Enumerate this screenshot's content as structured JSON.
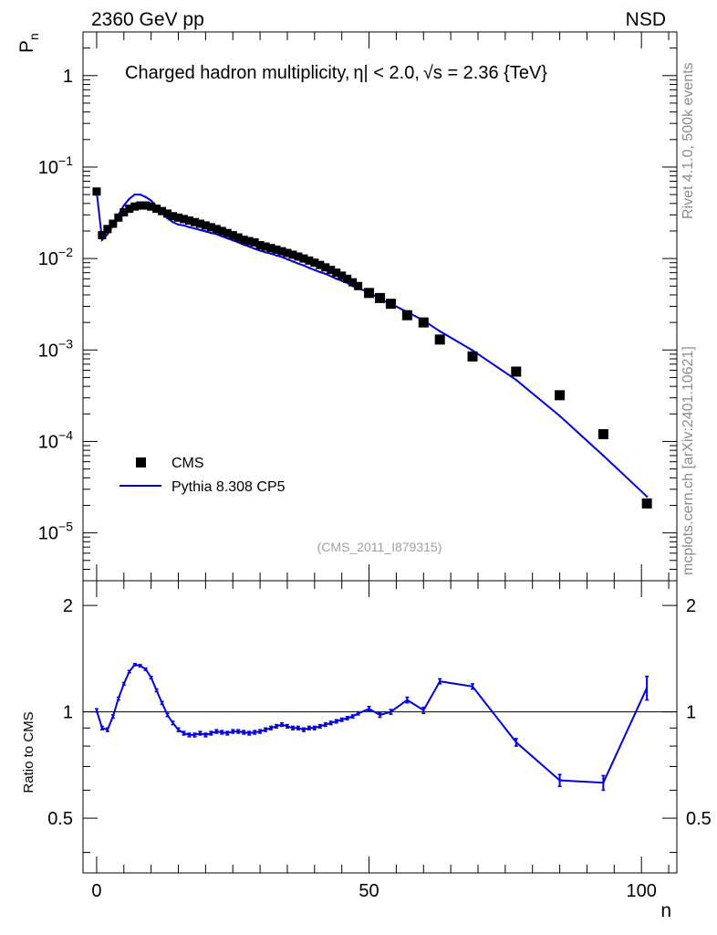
{
  "header": {
    "left": "2360 GeV pp",
    "right": "NSD"
  },
  "side_labels": {
    "top": "Rivet 4.1.0,  500k events",
    "bottom": "mcplots.cern.ch [arXiv:2401.10621]"
  },
  "chart_data": {
    "type": "scatter",
    "title_part1": "Charged hadron multiplicity,",
    "title_eta": "η",
    "title_part2": "| < 2.0,",
    "title_sqrt": "√",
    "title_part3": "s = 2.36 {TeV}",
    "ylabel": "P",
    "ylabel_sub": "n",
    "xlabel": "n",
    "analysis_id": "(CMS_2011_I879315)",
    "ylim": [
      3e-06,
      3
    ],
    "xlim": [
      -2.5,
      106.5
    ],
    "y_ticks": [
      {
        "value": 1,
        "base": "1",
        "exp": ""
      },
      {
        "value": 0.1,
        "base": "10",
        "exp": "−1"
      },
      {
        "value": 0.01,
        "base": "10",
        "exp": "−2"
      },
      {
        "value": 0.001,
        "base": "10",
        "exp": "−3"
      },
      {
        "value": 0.0001,
        "base": "10",
        "exp": "−4"
      },
      {
        "value": 1e-05,
        "base": "10",
        "exp": "−5"
      }
    ],
    "x_ticks": [
      {
        "value": 0,
        "label": "0"
      },
      {
        "value": 50,
        "label": "50"
      },
      {
        "value": 100,
        "label": "100"
      }
    ],
    "legend": [
      {
        "label": "CMS",
        "marker": "square",
        "color": "#000000"
      },
      {
        "label": "Pythia 8.308 CP5",
        "marker": "line",
        "color": "#0000dd"
      }
    ],
    "series": [
      {
        "name": "CMS",
        "x": [
          0,
          1,
          2,
          3,
          4,
          5,
          6,
          7,
          8,
          9,
          10,
          11,
          12,
          13,
          14,
          15,
          16,
          17,
          18,
          19,
          20,
          21,
          22,
          23,
          24,
          25,
          26,
          27,
          28,
          29,
          30,
          31,
          32,
          33,
          34,
          35,
          36,
          37,
          38,
          39,
          40,
          41,
          42,
          43,
          44,
          45,
          46,
          47,
          48,
          50,
          52,
          54,
          57,
          60,
          63,
          69,
          77,
          85,
          93,
          101
        ],
        "y": [
          0.054,
          0.018,
          0.021,
          0.024,
          0.028,
          0.032,
          0.035,
          0.037,
          0.038,
          0.038,
          0.037,
          0.035,
          0.033,
          0.031,
          0.029,
          0.028,
          0.027,
          0.026,
          0.025,
          0.024,
          0.023,
          0.022,
          0.021,
          0.02,
          0.019,
          0.018,
          0.017,
          0.016,
          0.0155,
          0.015,
          0.014,
          0.0135,
          0.013,
          0.0125,
          0.012,
          0.0115,
          0.011,
          0.0105,
          0.01,
          0.0095,
          0.009,
          0.0085,
          0.008,
          0.0075,
          0.007,
          0.0065,
          0.006,
          0.0055,
          0.005,
          0.0042,
          0.0037,
          0.0032,
          0.0024,
          0.002,
          0.0013,
          0.00085,
          0.00058,
          0.00032,
          0.00012,
          2.1e-05
        ]
      },
      {
        "name": "Pythia 8.308 CP5",
        "x": [
          0,
          1,
          2,
          3,
          4,
          5,
          6,
          7,
          8,
          9,
          10,
          11,
          12,
          13,
          14,
          15,
          16,
          17,
          18,
          19,
          20,
          21,
          22,
          23,
          24,
          25,
          26,
          27,
          28,
          29,
          30,
          31,
          32,
          33,
          34,
          35,
          36,
          37,
          38,
          39,
          40,
          41,
          42,
          43,
          44,
          45,
          46,
          47,
          48,
          50,
          52,
          54,
          57,
          60,
          63,
          69,
          77,
          85,
          93,
          101
        ],
        "y": [
          0.055,
          0.016,
          0.0185,
          0.023,
          0.03,
          0.038,
          0.045,
          0.05,
          0.05,
          0.047,
          0.043,
          0.037,
          0.032,
          0.0275,
          0.025,
          0.0235,
          0.023,
          0.022,
          0.0213,
          0.0205,
          0.0198,
          0.019,
          0.0185,
          0.0175,
          0.0166,
          0.0158,
          0.015,
          0.0142,
          0.0135,
          0.0128,
          0.0122,
          0.0117,
          0.0113,
          0.0108,
          0.0104,
          0.0098,
          0.0093,
          0.0088,
          0.0084,
          0.0079,
          0.0075,
          0.0071,
          0.0068,
          0.0064,
          0.006,
          0.0057,
          0.0054,
          0.005,
          0.0047,
          0.0043,
          0.0036,
          0.0032,
          0.0026,
          0.0021,
          0.0016,
          0.00099,
          0.00047,
          0.00019,
          7e-05,
          2.5e-05
        ]
      }
    ],
    "ratio": {
      "ylabel": "Ratio to CMS",
      "ylim": [
        0.35,
        2.35
      ],
      "y_ticks": [
        {
          "value": 0.5,
          "label": "0.5"
        },
        {
          "value": 1,
          "label": "1"
        },
        {
          "value": 2,
          "label": "2"
        }
      ],
      "x": [
        0,
        1,
        2,
        3,
        4,
        5,
        6,
        7,
        8,
        9,
        10,
        11,
        12,
        13,
        14,
        15,
        16,
        17,
        18,
        19,
        20,
        21,
        22,
        23,
        24,
        25,
        26,
        27,
        28,
        29,
        30,
        31,
        32,
        33,
        34,
        35,
        36,
        37,
        38,
        39,
        40,
        41,
        42,
        43,
        44,
        45,
        46,
        47,
        48,
        50,
        52,
        54,
        57,
        60,
        63,
        69,
        77,
        85,
        93,
        101
      ],
      "values": [
        1.01,
        0.9,
        0.89,
        0.97,
        1.09,
        1.2,
        1.3,
        1.36,
        1.35,
        1.32,
        1.25,
        1.15,
        1.06,
        0.98,
        0.93,
        0.89,
        0.87,
        0.86,
        0.86,
        0.87,
        0.86,
        0.87,
        0.88,
        0.875,
        0.87,
        0.88,
        0.88,
        0.875,
        0.87,
        0.875,
        0.88,
        0.89,
        0.9,
        0.91,
        0.92,
        0.91,
        0.9,
        0.9,
        0.89,
        0.9,
        0.9,
        0.91,
        0.92,
        0.93,
        0.94,
        0.95,
        0.96,
        0.97,
        0.99,
        1.02,
        0.98,
        1.0,
        1.08,
        1.01,
        1.22,
        1.18,
        0.82,
        0.64,
        0.63,
        1.17
      ],
      "errors": [
        0.01,
        0.01,
        0.01,
        0.01,
        0.01,
        0.01,
        0.01,
        0.01,
        0.01,
        0.01,
        0.01,
        0.01,
        0.01,
        0.01,
        0.01,
        0.01,
        0.01,
        0.01,
        0.01,
        0.01,
        0.01,
        0.01,
        0.01,
        0.01,
        0.01,
        0.01,
        0.01,
        0.01,
        0.01,
        0.01,
        0.01,
        0.01,
        0.01,
        0.01,
        0.01,
        0.01,
        0.01,
        0.01,
        0.01,
        0.01,
        0.01,
        0.01,
        0.01,
        0.01,
        0.01,
        0.01,
        0.01,
        0.01,
        0.01,
        0.015,
        0.015,
        0.015,
        0.02,
        0.02,
        0.02,
        0.02,
        0.02,
        0.025,
        0.03,
        0.09
      ]
    }
  }
}
